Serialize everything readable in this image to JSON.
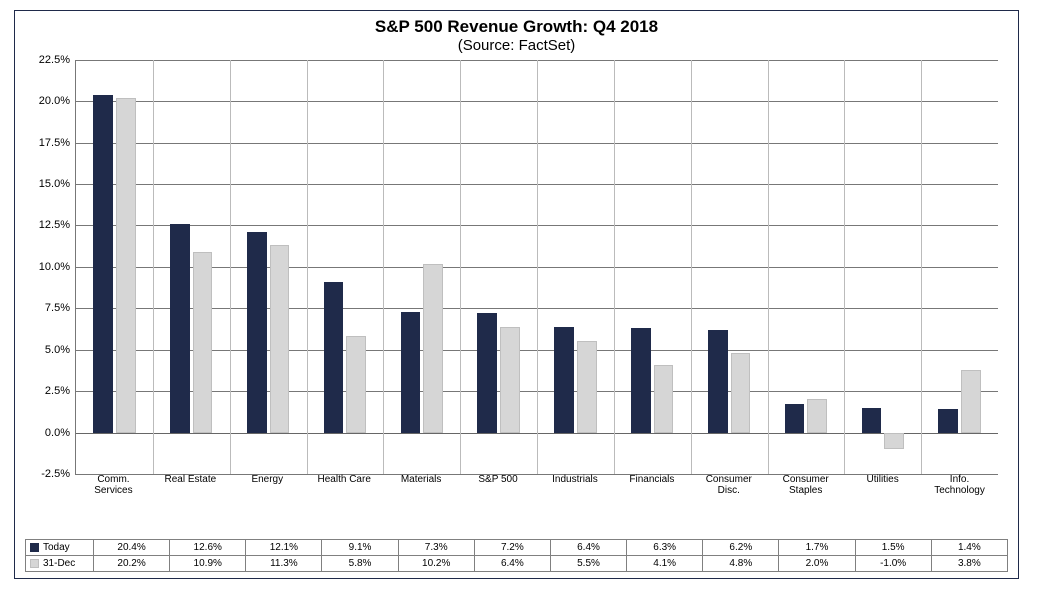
{
  "chart": {
    "type": "bar",
    "title": "S&P 500 Revenue Growth: Q4 2018",
    "subtitle": "(Source: FactSet)",
    "title_fontsize": 17,
    "subtitle_fontsize": 15,
    "background_color": "#ffffff",
    "border_color": "#1f2a4a",
    "grid_color": "#777777",
    "axis_fontsize": 11,
    "category_fontsize": 10,
    "y_axis": {
      "min": -2.5,
      "max": 22.5,
      "tick_step": 2.5,
      "ticks": [
        -2.5,
        0.0,
        2.5,
        5.0,
        7.5,
        10.0,
        12.5,
        15.0,
        17.5,
        20.0,
        22.5
      ],
      "tick_format_suffix": "%",
      "tick_decimals": 1
    },
    "categories": [
      "Comm.\nServices",
      "Real Estate",
      "Energy",
      "Health Care",
      "Materials",
      "S&P 500",
      "Industrials",
      "Financials",
      "Consumer\nDisc.",
      "Consumer\nStaples",
      "Utilities",
      "Info.\nTechnology"
    ],
    "series": [
      {
        "name": "Today",
        "color": "#1f2a4a",
        "values": [
          20.4,
          12.6,
          12.1,
          9.1,
          7.3,
          7.2,
          6.4,
          6.3,
          6.2,
          1.7,
          1.5,
          1.4
        ]
      },
      {
        "name": "31-Dec",
        "color": "#d6d6d6",
        "border_color": "#bfbfbf",
        "values": [
          20.2,
          10.9,
          11.3,
          5.8,
          10.2,
          6.4,
          5.5,
          4.1,
          4.8,
          2.0,
          -1.0,
          3.8
        ]
      }
    ],
    "bar_group_width_ratio": 0.55,
    "bar_gap_ratio": 0.04,
    "table_value_suffix": "%",
    "table_value_decimals": 1
  }
}
